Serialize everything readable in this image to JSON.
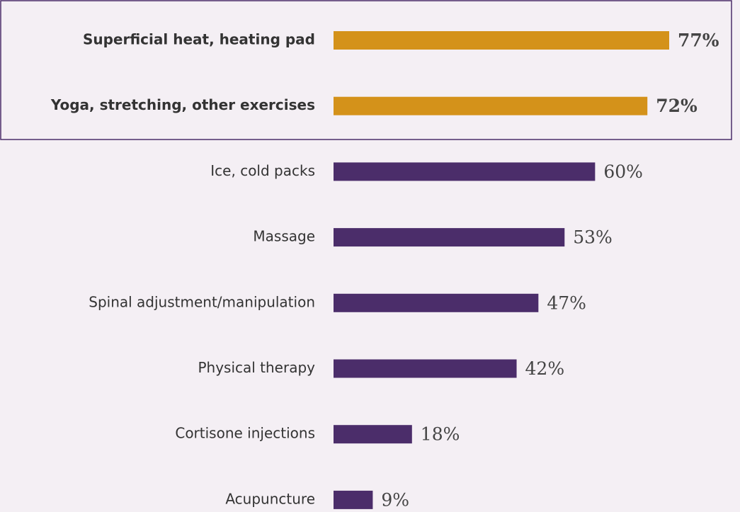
{
  "chart_data": {
    "type": "bar",
    "categories": [
      "Superficial heat, heating pad",
      "Yoga, stretching, other exercises",
      "Ice, cold packs",
      "Massage",
      "Spinal adjustment/manipulation",
      "Physical therapy",
      "Cortisone injections",
      "Acupuncture"
    ],
    "values": [
      77,
      72,
      60,
      53,
      47,
      42,
      18,
      9
    ],
    "value_labels": [
      "77%",
      "72%",
      "60%",
      "53%",
      "47%",
      "42%",
      "18%",
      "9%"
    ],
    "colors": [
      "#d4921a",
      "#d4921a",
      "#4b2d6a",
      "#4b2d6a",
      "#4b2d6a",
      "#4b2d6a",
      "#4b2d6a",
      "#4b2d6a"
    ],
    "highlighted": [
      true,
      true,
      false,
      false,
      false,
      false,
      false,
      false
    ]
  }
}
